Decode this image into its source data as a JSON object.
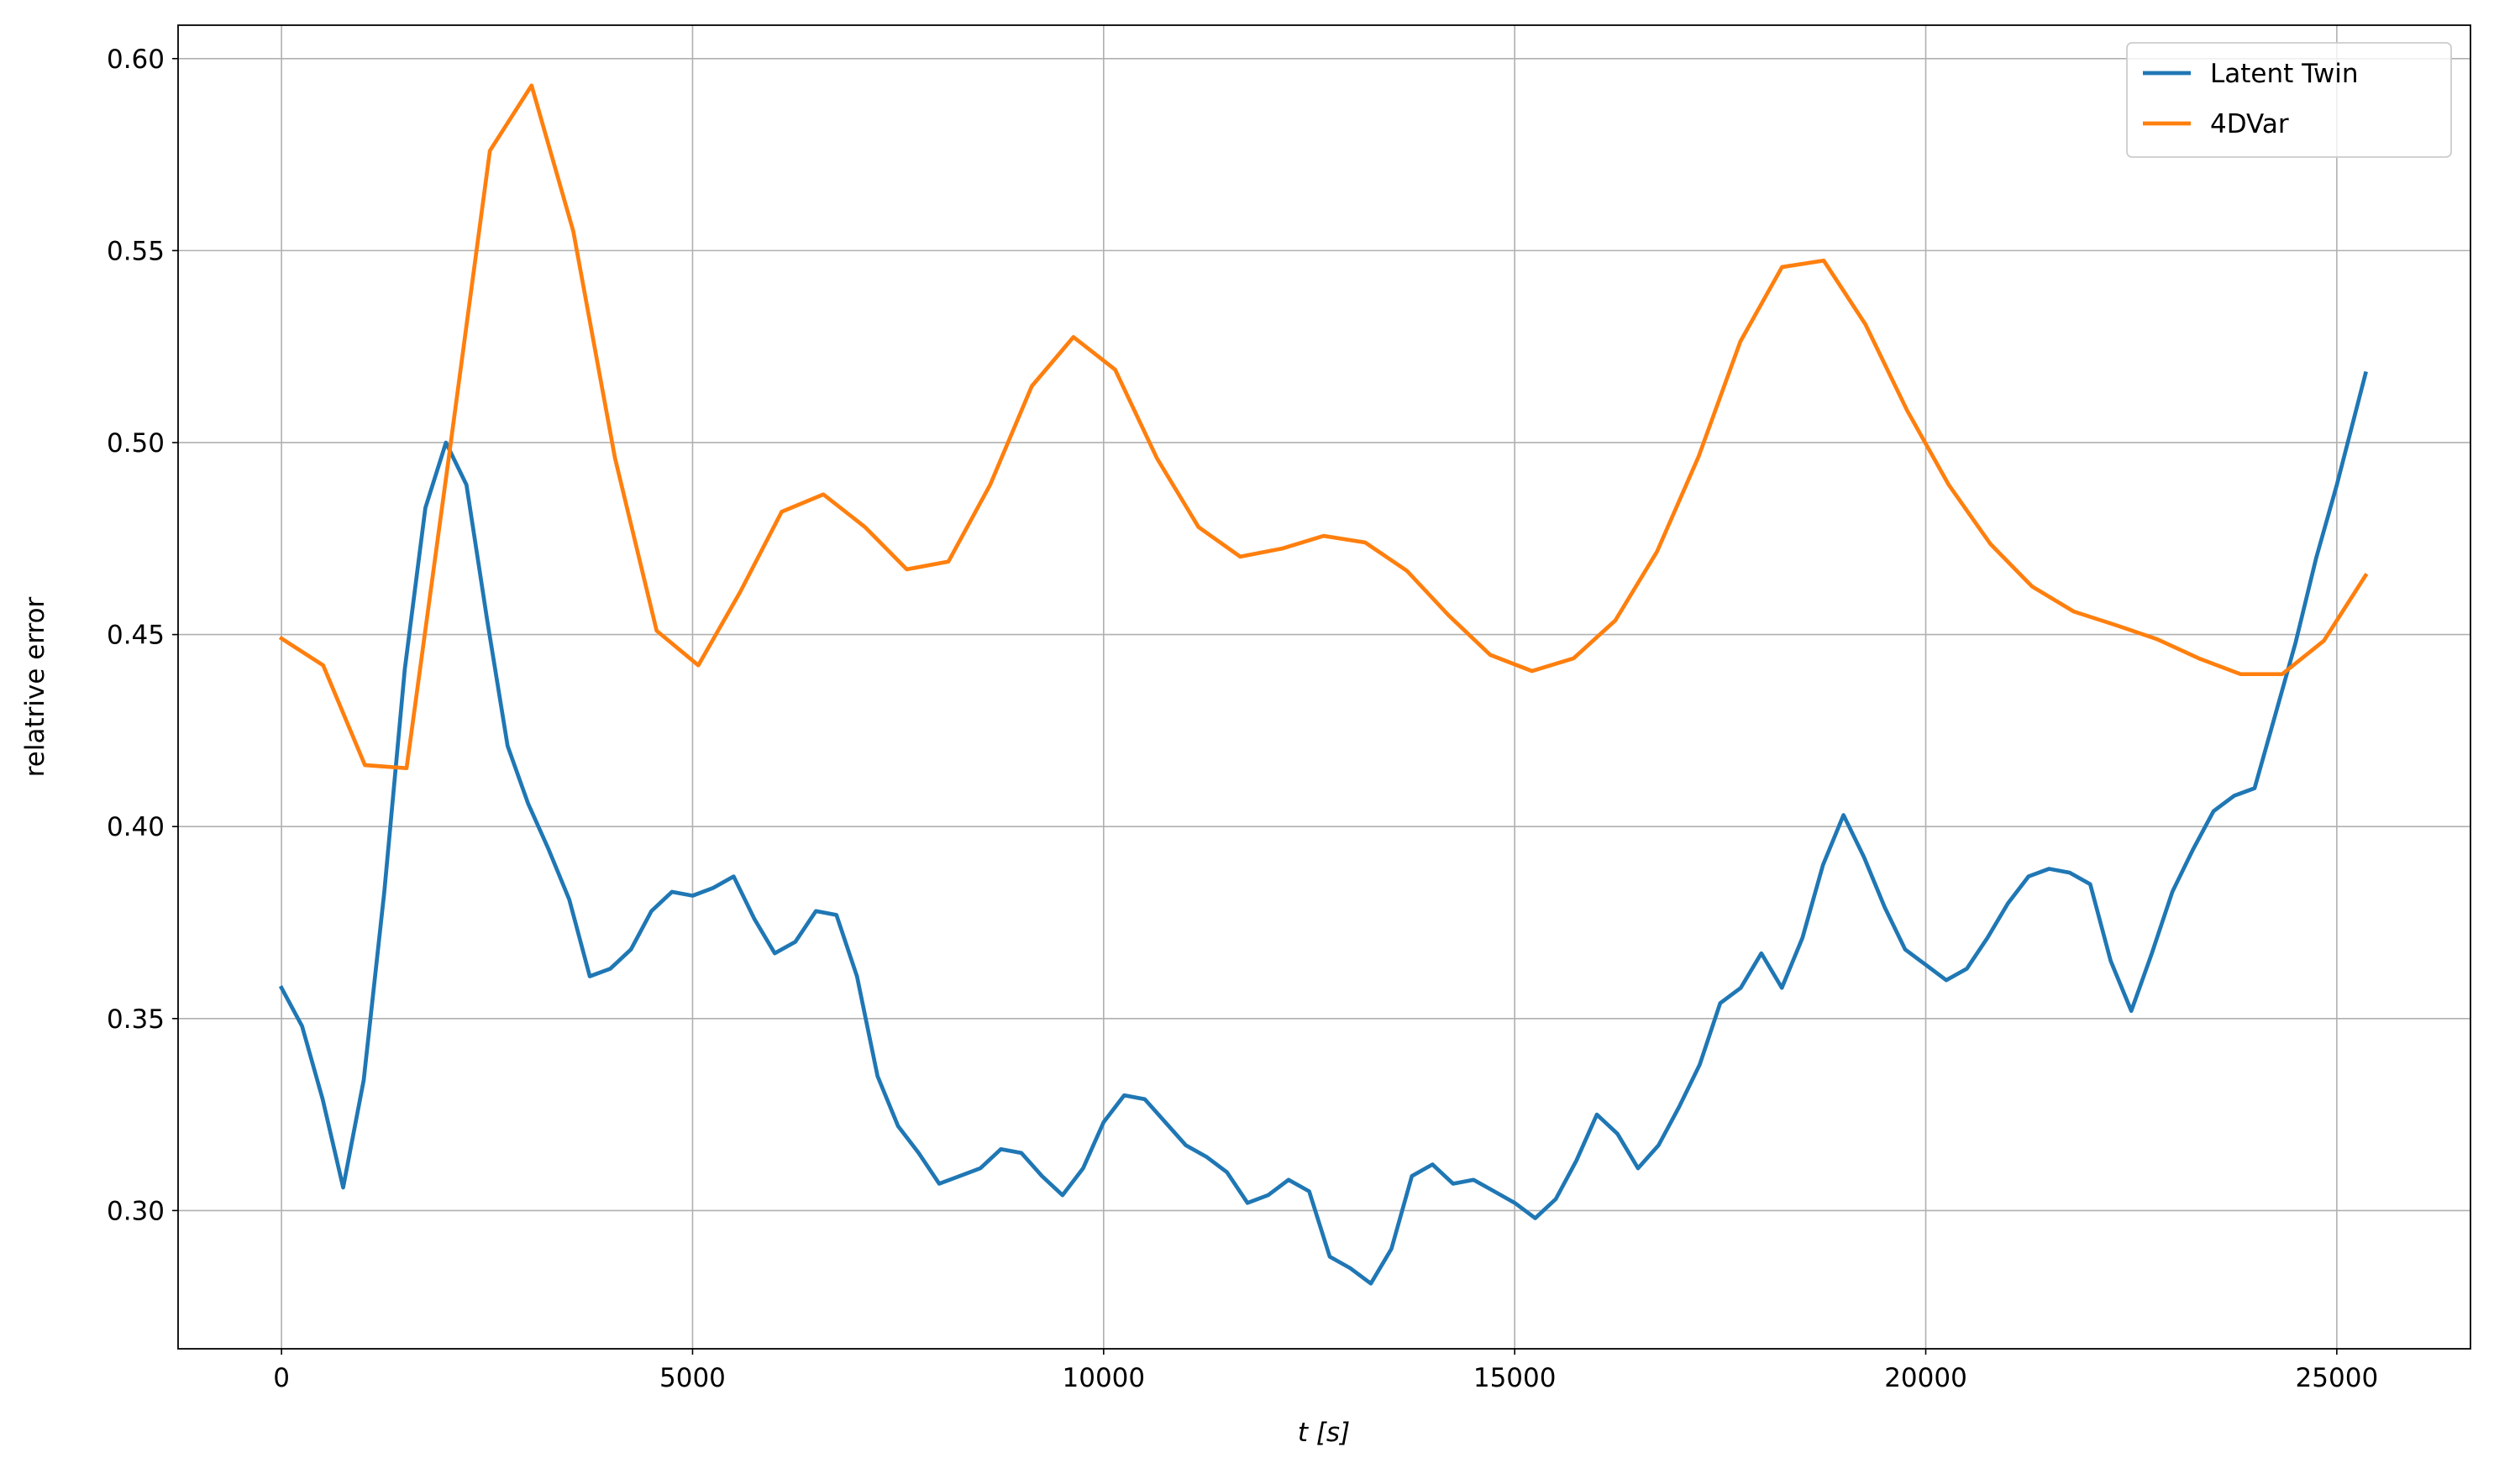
{
  "chart_data": {
    "type": "line",
    "xlabel": "t [s]",
    "ylabel": "relatrive error",
    "xlim": [
      -1258,
      26626
    ],
    "ylim": [
      0.264,
      0.6087
    ],
    "xticks": [
      0,
      5000,
      10000,
      15000,
      20000,
      25000
    ],
    "yticks": [
      {
        "value": 0.3,
        "label": "0.30"
      },
      0.35,
      {
        "value": 0.4,
        "label": "0.40"
      },
      0.45,
      {
        "value": 0.5,
        "label": "0.50"
      },
      0.55,
      {
        "value": 0.6,
        "label": "0.60"
      }
    ],
    "grid": true,
    "legend": "upper right",
    "series": [
      {
        "name": "Latent Twin",
        "color": "#1f77b4",
        "x": [
          0,
          250,
          500,
          750,
          1000,
          1250,
          1500,
          1750,
          2000,
          2250,
          2500,
          2750,
          3000,
          3250,
          3500,
          3750,
          4000,
          4250,
          4500,
          4750,
          5000,
          5250,
          5500,
          5750,
          6000,
          6250,
          6500,
          6750,
          7000,
          7250,
          7500,
          7750,
          8000,
          8250,
          8500,
          8750,
          9000,
          9250,
          9500,
          9750,
          10000,
          10250,
          10500,
          10750,
          11000,
          11250,
          11500,
          11750,
          12000,
          12250,
          12500,
          12750,
          13000,
          13250,
          13500,
          13750,
          14000,
          14250,
          14500,
          14750,
          15000,
          15250,
          15500,
          15750,
          16000,
          16250,
          16500,
          16750,
          17000,
          17250,
          17500,
          17750,
          18000,
          18250,
          18500,
          18750,
          19000,
          19250,
          19500,
          19750,
          20000,
          20250,
          20500,
          20750,
          21000,
          21250,
          21500,
          21750,
          22000,
          22250,
          22500,
          22750,
          23000,
          23250,
          23500,
          23750,
          24000,
          24250,
          24500,
          24750,
          25000,
          25350
        ],
        "values": [
          0.358,
          0.348,
          0.329,
          0.306,
          0.334,
          0.383,
          0.441,
          0.483,
          0.5,
          0.489,
          0.454,
          0.421,
          0.406,
          0.394,
          0.381,
          0.361,
          0.363,
          0.368,
          0.378,
          0.383,
          0.382,
          0.384,
          0.387,
          0.376,
          0.367,
          0.37,
          0.378,
          0.377,
          0.361,
          0.335,
          0.322,
          0.315,
          0.307,
          0.309,
          0.311,
          0.316,
          0.315,
          0.309,
          0.304,
          0.311,
          0.323,
          0.33,
          0.329,
          0.323,
          0.317,
          0.314,
          0.31,
          0.302,
          0.304,
          0.308,
          0.305,
          0.288,
          0.285,
          0.281,
          0.29,
          0.309,
          0.312,
          0.307,
          0.308,
          0.305,
          0.302,
          0.298,
          0.303,
          0.313,
          0.325,
          0.32,
          0.311,
          0.317,
          0.327,
          0.338,
          0.354,
          0.358,
          0.367,
          0.358,
          0.371,
          0.39,
          0.403,
          0.392,
          0.379,
          0.368,
          0.364,
          0.36,
          0.363,
          0.371,
          0.38,
          0.387,
          0.389,
          0.388,
          0.385,
          0.365,
          0.352,
          0.367,
          0.383,
          0.394,
          0.404,
          0.408,
          0.41,
          0.429,
          0.448,
          0.47,
          0.489,
          0.518
        ]
      },
      {
        "name": "4DVar",
        "color": "#ff7f0e",
        "x": [
          0,
          507,
          1014,
          1521,
          2028,
          2535,
          3042,
          3549,
          4056,
          4563,
          5070,
          5577,
          6084,
          6591,
          7098,
          7605,
          8112,
          8619,
          9126,
          9633,
          10140,
          10647,
          11154,
          11661,
          12168,
          12675,
          13182,
          13689,
          14196,
          14703,
          15210,
          15717,
          16224,
          16731,
          17238,
          17745,
          18252,
          18759,
          19266,
          19773,
          20280,
          20787,
          21294,
          21801,
          22308,
          22815,
          23322,
          23829,
          24336,
          24843,
          25350
        ],
        "values": [
          0.449,
          0.442,
          0.416,
          0.4152,
          0.495,
          0.576,
          0.593,
          0.555,
          0.496,
          0.451,
          0.442,
          0.461,
          0.482,
          0.4865,
          0.478,
          0.467,
          0.469,
          0.489,
          0.5147,
          0.5275,
          0.519,
          0.496,
          0.478,
          0.4703,
          0.4724,
          0.4757,
          0.474,
          0.4666,
          0.455,
          0.4447,
          0.4405,
          0.4438,
          0.4537,
          0.4716,
          0.4964,
          0.5263,
          0.5457,
          0.5474,
          0.5308,
          0.5084,
          0.489,
          0.4736,
          0.4625,
          0.456,
          0.4525,
          0.4488,
          0.4438,
          0.4397,
          0.4397,
          0.4484,
          0.4654
        ]
      }
    ]
  }
}
